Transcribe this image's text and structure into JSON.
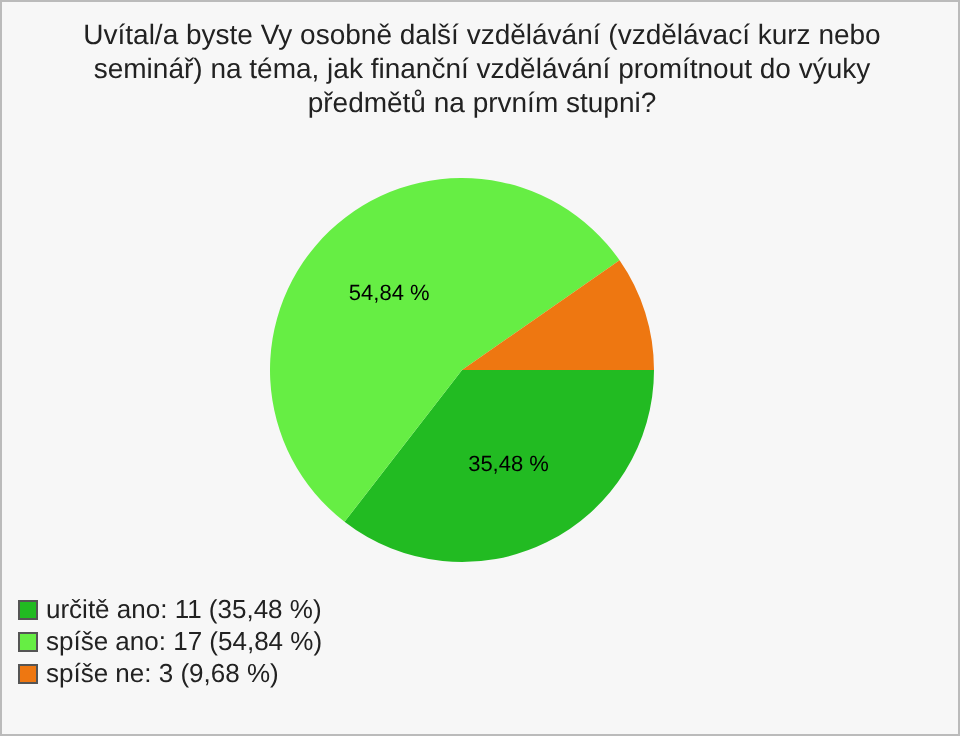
{
  "chart_data": {
    "type": "pie",
    "title": "Uvítal/a byste Vy osobně další vzdělávání (vzdělávací kurz nebo seminář) na téma, jak finanční vzdělávání promítnout do výuky předmětů na prvním stupni?",
    "categories": [
      "určitě ano: 11 (35,48 %)",
      "spíše ano: 17 (54,84 %)",
      "spíše ne: 3 (9,68 %)"
    ],
    "values": [
      35.48,
      54.84,
      9.68
    ],
    "colors": [
      "#22bb22",
      "#66ee44",
      "#ee7711"
    ],
    "value_labels": [
      "35,48 %",
      "54,84 %",
      null
    ],
    "legend": "bottom left"
  }
}
